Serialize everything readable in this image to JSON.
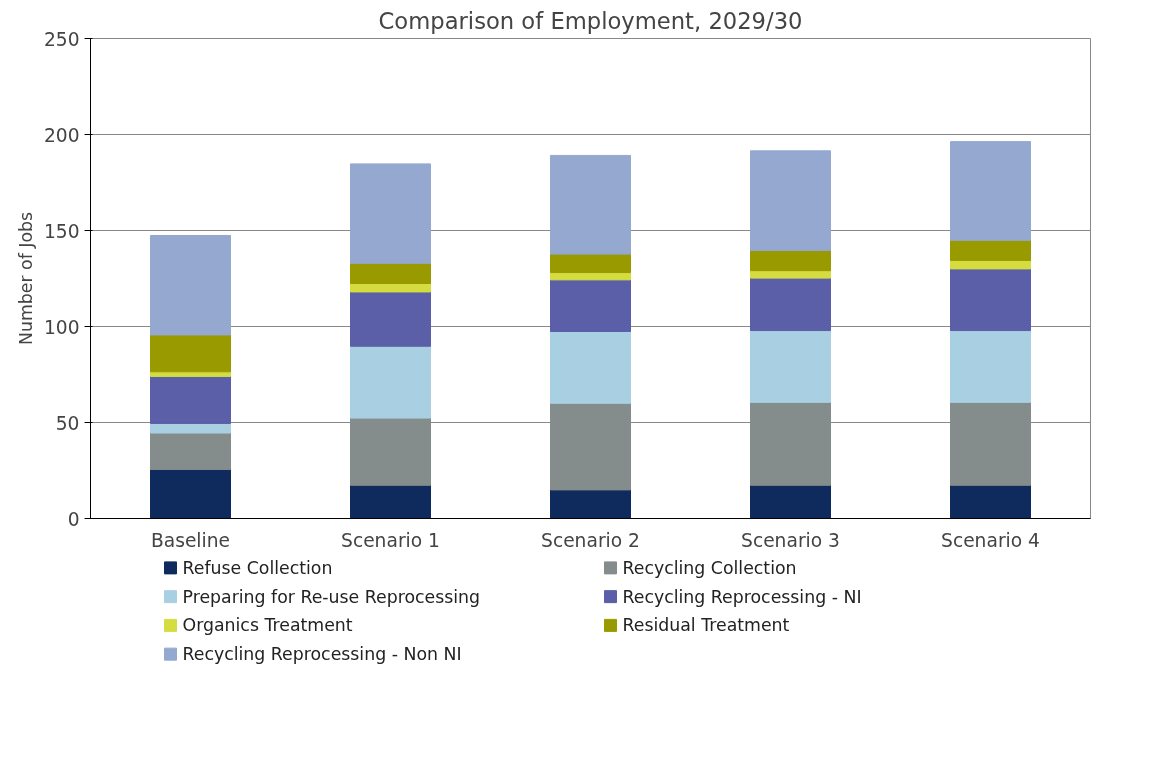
{
  "chart_data": {
    "type": "bar",
    "title": "Comparison of Employment, 2029/30",
    "ylabel": "Number of Jobs",
    "stacked": true,
    "categories": [
      "Baseline",
      "Scenario 1",
      "Scenario 2",
      "Scenario 3",
      "Scenario 4"
    ],
    "ylim": [
      0,
      250
    ],
    "yticks": [
      0,
      50,
      100,
      150,
      200,
      250
    ],
    "grid": "y",
    "legend": "bottom",
    "series": [
      {
        "name": "Refuse Collection",
        "color": "#0f2a5c",
        "values": [
          25.5,
          17.3,
          14.9,
          17.3,
          17.3
        ]
      },
      {
        "name": "Recycling Collection",
        "color": "#848c8c",
        "values": [
          19,
          35,
          45.1,
          43.2,
          43.2
        ]
      },
      {
        "name": "Preparing for Re-use Reprocessing",
        "color": "#a8d0e2",
        "values": [
          5,
          37.4,
          37.4,
          37.4,
          37.4
        ]
      },
      {
        "name": "Recycling Reprocessing - NI",
        "color": "#5a5fa8",
        "values": [
          24.5,
          28.3,
          26.9,
          27.3,
          32.1
        ]
      },
      {
        "name": "Organics Treatment",
        "color": "#d4dc40",
        "values": [
          2.4,
          4.4,
          3.8,
          3.9,
          4.4
        ]
      },
      {
        "name": "Residual Treatment",
        "color": "#999900",
        "values": [
          19.2,
          10.5,
          9.6,
          10.5,
          10.5
        ]
      },
      {
        "name": "Recycling Reprocessing - Non NI",
        "color": "#94a8d0",
        "values": [
          51.8,
          51.8,
          51.4,
          51.9,
          51.4
        ]
      }
    ]
  }
}
